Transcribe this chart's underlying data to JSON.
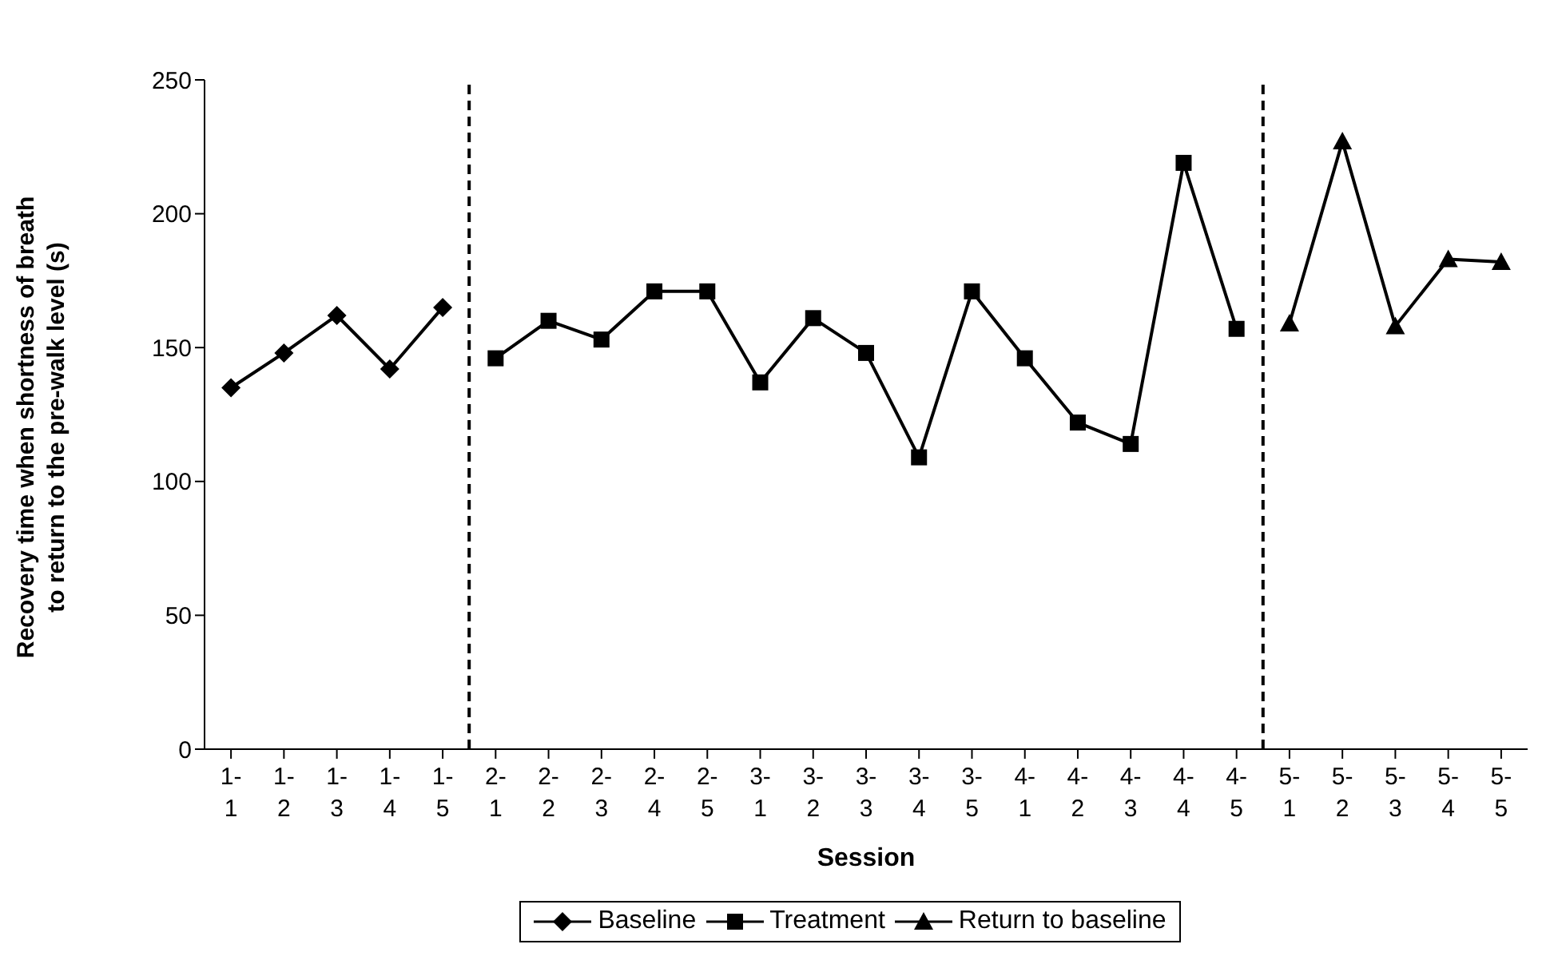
{
  "chart_data": {
    "type": "line",
    "xlabel": "Session",
    "ylabel": "Recovery time when shortness of breath to return to the pre-walk level (s)",
    "categories": [
      "1-1",
      "1-2",
      "1-3",
      "1-4",
      "1-5",
      "2-1",
      "2-2",
      "2-3",
      "2-4",
      "2-5",
      "3-1",
      "3-2",
      "3-3",
      "3-4",
      "3-5",
      "4-1",
      "4-2",
      "4-3",
      "4-4",
      "4-5",
      "5-1",
      "5-2",
      "5-3",
      "5-4",
      "5-5"
    ],
    "series": [
      {
        "name": "Baseline",
        "color": "#000000",
        "marker": "diamond",
        "values": [
          135,
          148,
          162,
          142,
          165,
          null,
          null,
          null,
          null,
          null,
          null,
          null,
          null,
          null,
          null,
          null,
          null,
          null,
          null,
          null,
          null,
          null,
          null,
          null,
          null
        ]
      },
      {
        "name": "Treatment",
        "color": "#000000",
        "marker": "square",
        "values": [
          null,
          null,
          null,
          null,
          null,
          146,
          160,
          153,
          171,
          171,
          137,
          161,
          148,
          109,
          171,
          146,
          122,
          114,
          219,
          157,
          null,
          null,
          null,
          null,
          null
        ]
      },
      {
        "name": "Return to baseline",
        "color": "#000000",
        "marker": "triangle",
        "values": [
          null,
          null,
          null,
          null,
          null,
          null,
          null,
          null,
          null,
          null,
          null,
          null,
          null,
          null,
          null,
          null,
          null,
          null,
          null,
          null,
          159,
          227,
          158,
          183,
          182
        ]
      }
    ],
    "ylim": [
      0,
      250
    ],
    "yticks": [
      0,
      50,
      100,
      150,
      200,
      250
    ],
    "grid": false,
    "legend": "bottom",
    "line_style": "solid"
  }
}
